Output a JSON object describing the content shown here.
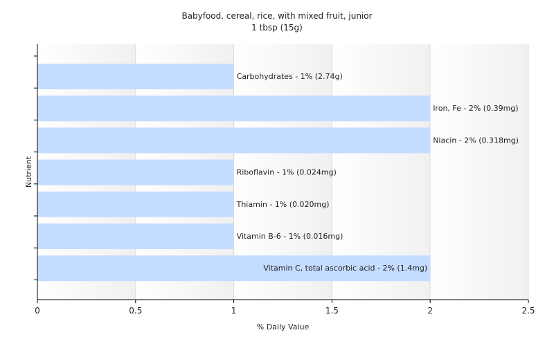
{
  "chart_data": {
    "type": "bar",
    "orientation": "horizontal",
    "title": "Babyfood, cereal, rice, with mixed fruit, junior",
    "subtitle": "1 tbsp (15g)",
    "xlabel": "% Daily Value",
    "ylabel": "Nutrient",
    "xlim": [
      0,
      2.5
    ],
    "xticks": [
      "0",
      "0.5",
      "1",
      "1.5",
      "2",
      "2.5"
    ],
    "grid": true,
    "bar_color": "#c4dcff",
    "categories": [
      "Carbohydrates",
      "Iron, Fe",
      "Niacin",
      "Riboflavin",
      "Thiamin",
      "Vitamin B-6",
      "Vitamin C, total ascorbic acid"
    ],
    "values": [
      1,
      2,
      2,
      1,
      1,
      1,
      2
    ],
    "labels": [
      "Carbohydrates - 1% (2.74g)",
      "Iron, Fe - 2% (0.39mg)",
      "Niacin - 2% (0.318mg)",
      "Riboflavin - 1% (0.024mg)",
      "Thiamin - 1% (0.020mg)",
      "Vitamin B-6 - 1% (0.016mg)",
      "Vitamin C, total ascorbic acid - 2% (1.4mg)"
    ]
  }
}
